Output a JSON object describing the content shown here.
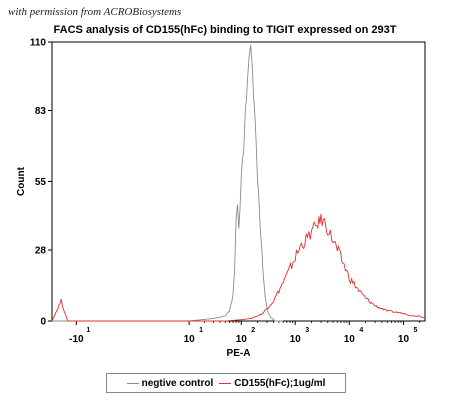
{
  "watermark": "with permission from ACROBiosystems",
  "chart_data": {
    "type": "line",
    "title": "FACS analysis of CD155(hFc) binding to TIGIT expressed on 293T",
    "xlabel": "PE-A",
    "ylabel": "Count",
    "xscale": "biexponential",
    "xlim": [
      -30,
      250000
    ],
    "ylim": [
      0,
      110
    ],
    "yticks": [
      0,
      28,
      55,
      83,
      110
    ],
    "xticks": [
      {
        "label": "-10",
        "exp": "1"
      },
      {
        "label": "10",
        "exp": "1"
      },
      {
        "label": "10",
        "exp": "2"
      },
      {
        "label": "10",
        "exp": "3"
      },
      {
        "label": "10",
        "exp": "4"
      },
      {
        "label": "10",
        "exp": "5"
      }
    ],
    "grid": false,
    "legend_position": "bottom",
    "series": [
      {
        "name": "negtive control",
        "color": "#8c8c8c",
        "x": [
          -30,
          -10,
          0,
          10,
          30,
          50,
          60,
          70,
          75,
          80,
          85,
          90,
          100,
          110,
          120,
          130,
          140,
          150,
          160,
          170,
          180,
          190,
          200,
          220,
          240,
          260,
          280,
          300,
          320,
          350,
          380,
          420,
          500,
          600
        ],
        "y": [
          0,
          0,
          0,
          0,
          1,
          2,
          4,
          10,
          22,
          40,
          46,
          38,
          55,
          68,
          82,
          95,
          104,
          108,
          102,
          90,
          78,
          70,
          58,
          42,
          28,
          17,
          10,
          5,
          3,
          1.5,
          1,
          0,
          0,
          0
        ]
      },
      {
        "name": "CD155(hFc);1ug/ml",
        "color": "#e22f2f",
        "x": [
          -30,
          -20,
          -15,
          -10,
          0,
          50,
          100,
          150,
          200,
          250,
          300,
          400,
          500,
          700,
          1000,
          1300,
          1600,
          2000,
          2500,
          3000,
          3500,
          4000,
          5000,
          6000,
          8000,
          10000,
          15000,
          20000,
          30000,
          50000,
          100000,
          150000,
          200000,
          250000
        ],
        "y": [
          0,
          8,
          0,
          0,
          0,
          0,
          0.5,
          1,
          2,
          3,
          5,
          8,
          12,
          18,
          25,
          30,
          32,
          35,
          38,
          40,
          39,
          36,
          32,
          28,
          22,
          17,
          12,
          9,
          6,
          4,
          3,
          2,
          2,
          1
        ]
      }
    ]
  }
}
